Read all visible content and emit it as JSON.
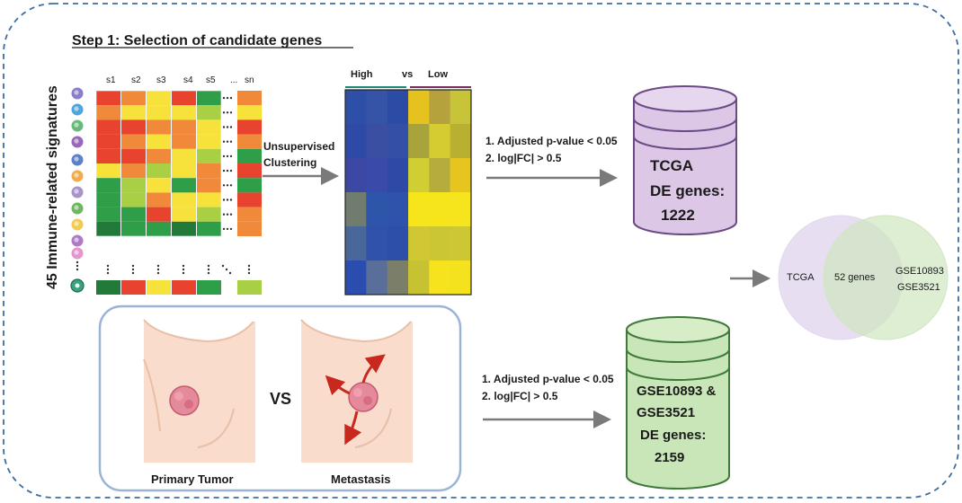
{
  "title": "Step 1: Selection of candidate genes",
  "side_label": "45 Immune-related signatures",
  "sample_columns": [
    "s1",
    "s2",
    "s3",
    "s4",
    "s5",
    "...",
    "sn"
  ],
  "colors": {
    "red": "#e8432f",
    "orange": "#f08a3a",
    "yellow": "#f7e23c",
    "lightgreen": "#a9cf45",
    "green": "#2e9e48",
    "darkgreen": "#217a3a",
    "border_dash": "#3d6e9e",
    "tcga_db": "#dcc8e6",
    "geo_db": "#c9e6b8",
    "arrow": "#7a7a7a",
    "venn_left": "#e3d8ee",
    "venn_right": "#d9eccc"
  },
  "cell_icon_colors": [
    "#7d6fc3",
    "#3e9bd6",
    "#59b26a",
    "#8e58b4",
    "#4a73c2",
    "#f2a23c",
    "#9c8ac4",
    "#5fae52",
    "#f0c540",
    "#a66cc0",
    "#e28bc8",
    "#3aa37e"
  ],
  "immune_matrix": [
    [
      "red",
      "orange",
      "yellow",
      "red",
      "green",
      "orange"
    ],
    [
      "orange",
      "yellow",
      "yellow",
      "yellow",
      "lightgreen",
      "yellow"
    ],
    [
      "red",
      "red",
      "orange",
      "orange",
      "yellow",
      "red"
    ],
    [
      "red",
      "orange",
      "yellow",
      "orange",
      "yellow",
      "orange"
    ],
    [
      "red",
      "red",
      "orange",
      "yellow",
      "lightgreen",
      "green"
    ],
    [
      "yellow",
      "orange",
      "lightgreen",
      "yellow",
      "orange",
      "red"
    ],
    [
      "green",
      "lightgreen",
      "yellow",
      "green",
      "orange",
      "green"
    ],
    [
      "green",
      "lightgreen",
      "orange",
      "yellow",
      "yellow",
      "red"
    ],
    [
      "green",
      "green",
      "red",
      "yellow",
      "lightgreen",
      "orange"
    ],
    [
      "darkgreen",
      "green",
      "green",
      "darkgreen",
      "green",
      "orange"
    ]
  ],
  "last_row": [
    "darkgreen",
    "red",
    "yellow",
    "red",
    "green",
    "lightgreen"
  ],
  "clustering_label": [
    "Unsupervised",
    "Clustering"
  ],
  "heatmap": {
    "high_label": "High",
    "vs_label": "vs",
    "low_label": "Low",
    "high_color": "#1e8a72",
    "low_color": "#7a2e5a",
    "cells": [
      [
        "#2e4fa8",
        "#3554a8",
        "#2c4ba4",
        "#e6c21e",
        "#b6a23c",
        "#c7c43a"
      ],
      [
        "#2c4aa6",
        "#3a4ea2",
        "#344fa6",
        "#a8a33a",
        "#d4cc30",
        "#b9b032"
      ],
      [
        "#3b48a4",
        "#3a4aa8",
        "#2e4aa6",
        "#cfcf34",
        "#b4ad3e",
        "#e7c51f"
      ],
      [
        "#6f7c6e",
        "#2d56aa",
        "#2f52aa",
        "#f7e51c",
        "#f7e51c",
        "#f6e41c"
      ],
      [
        "#4a679b",
        "#3152aa",
        "#2d4fa9",
        "#d0c732",
        "#cac634",
        "#cdc734"
      ],
      [
        "#2b4db0",
        "#5a6e9a",
        "#7b7f6a",
        "#c7c232",
        "#f7e31d",
        "#f5e21e"
      ]
    ]
  },
  "criteria_top": [
    "1. Adjusted p-value < 0.05",
    "2. log|FC|  > 0.5"
  ],
  "criteria_bottom": [
    "1. Adjusted p-value < 0.05",
    "2. log|FC|  > 0.5"
  ],
  "tcga_db": [
    "TCGA",
    "DE genes:",
    "1222"
  ],
  "geo_db": [
    "GSE10893 &",
    "GSE3521",
    "DE genes:",
    "2159"
  ],
  "venn": {
    "left_label": "TCGA",
    "center_label": "52 genes",
    "right_labels": [
      "GSE10893",
      "GSE3521"
    ]
  },
  "comparison": {
    "primary_label": "Primary Tumor",
    "vs_label": "VS",
    "metastasis_label": "Metastasis"
  }
}
